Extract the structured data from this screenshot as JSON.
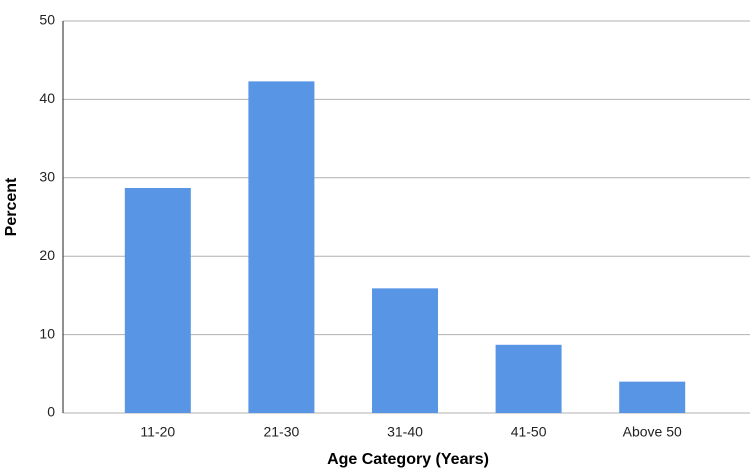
{
  "chart_data": {
    "type": "bar",
    "x_label": "Age Category (Years)",
    "y_label": "Percent",
    "categories": [
      "11-20",
      "21-30",
      "31-40",
      "41-50",
      "Above 50"
    ],
    "values": [
      28.7,
      42.3,
      15.9,
      8.7,
      4.0
    ],
    "color": "#5895e5",
    "ylim": [
      0,
      50
    ],
    "yticks": [
      0,
      10,
      20,
      30,
      40,
      50
    ],
    "grid": true
  }
}
